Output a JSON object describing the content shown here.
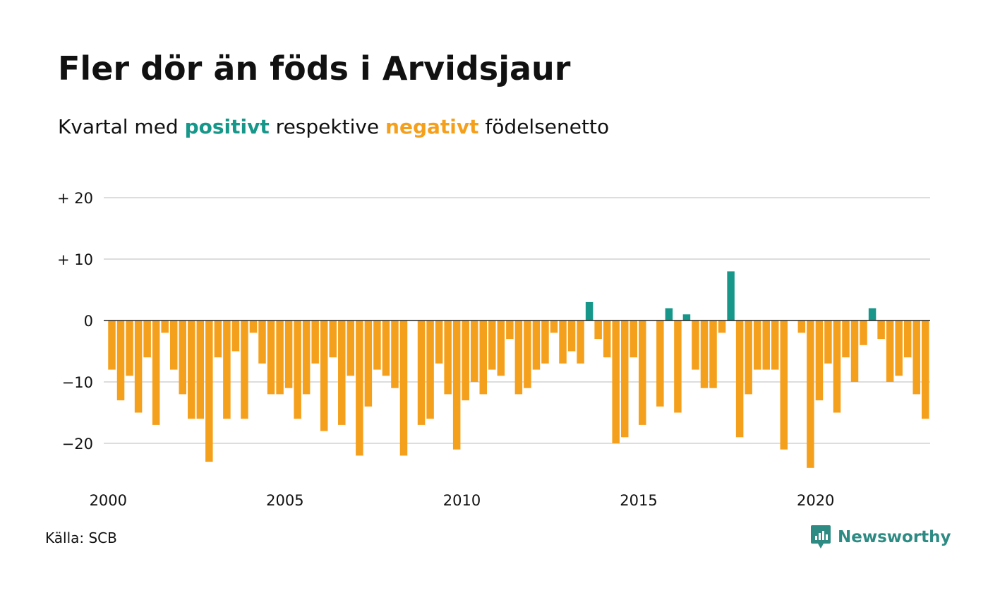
{
  "header": {
    "title": "Fler dör än föds i Arvidsjaur",
    "subtitle_start": "Kvartal med ",
    "subtitle_pos": "positivt",
    "subtitle_mid": " respektive ",
    "subtitle_neg": "negativt",
    "subtitle_end": " födelsenetto"
  },
  "footer": {
    "source": "Källa: SCB",
    "brand": "Newsworthy"
  },
  "colors": {
    "positive": "#16978a",
    "negative": "#f5a01c",
    "grid": "#dddddd",
    "brand": "#2e8b84"
  },
  "icons": {
    "brand": "chart-speech-bubble-icon"
  },
  "chart_data": {
    "type": "bar",
    "title": "Fler dör än föds i Arvidsjaur",
    "subtitle": "Kvartal med positivt respektive negativt födelsenetto",
    "xlabel": "",
    "ylabel": "",
    "ylim": [
      -26,
      20
    ],
    "yticks": [
      20,
      10,
      0,
      -10,
      -20
    ],
    "ytick_labels": [
      "+ 20",
      "+ 10",
      "0",
      "−10",
      "−20"
    ],
    "xtick_labels": [
      "2000",
      "2005",
      "2010",
      "2015",
      "2020"
    ],
    "x_start": "2000 Q1",
    "grid": true,
    "series": [
      {
        "values": [
          -8,
          -13,
          -9,
          -15,
          -6,
          -17,
          -2,
          -8,
          -12,
          -16,
          -16,
          -23,
          -6,
          -16,
          -5,
          -16,
          -2,
          -7,
          -12,
          -12,
          -11,
          -16,
          -12,
          -7,
          -18,
          -6,
          -17,
          -9,
          -22,
          -14,
          -8,
          -9,
          -11,
          -22,
          0,
          -17,
          -16,
          -7,
          -12,
          -21,
          -13,
          -10,
          -12,
          -8,
          -9,
          -3,
          -12,
          -11,
          -8,
          -7,
          -2,
          -7,
          -5,
          -7,
          3,
          -3,
          -6,
          -20,
          -19,
          -6,
          -17,
          0,
          -14,
          2,
          -15,
          1,
          -8,
          -11,
          -11,
          -2,
          8,
          -19,
          -12,
          -8,
          -8,
          -8,
          -21,
          0,
          -2,
          -24,
          -13,
          -7,
          -15,
          -6,
          -10,
          -4,
          2,
          -3,
          -10,
          -9,
          -6,
          -12,
          -16
        ]
      }
    ]
  }
}
